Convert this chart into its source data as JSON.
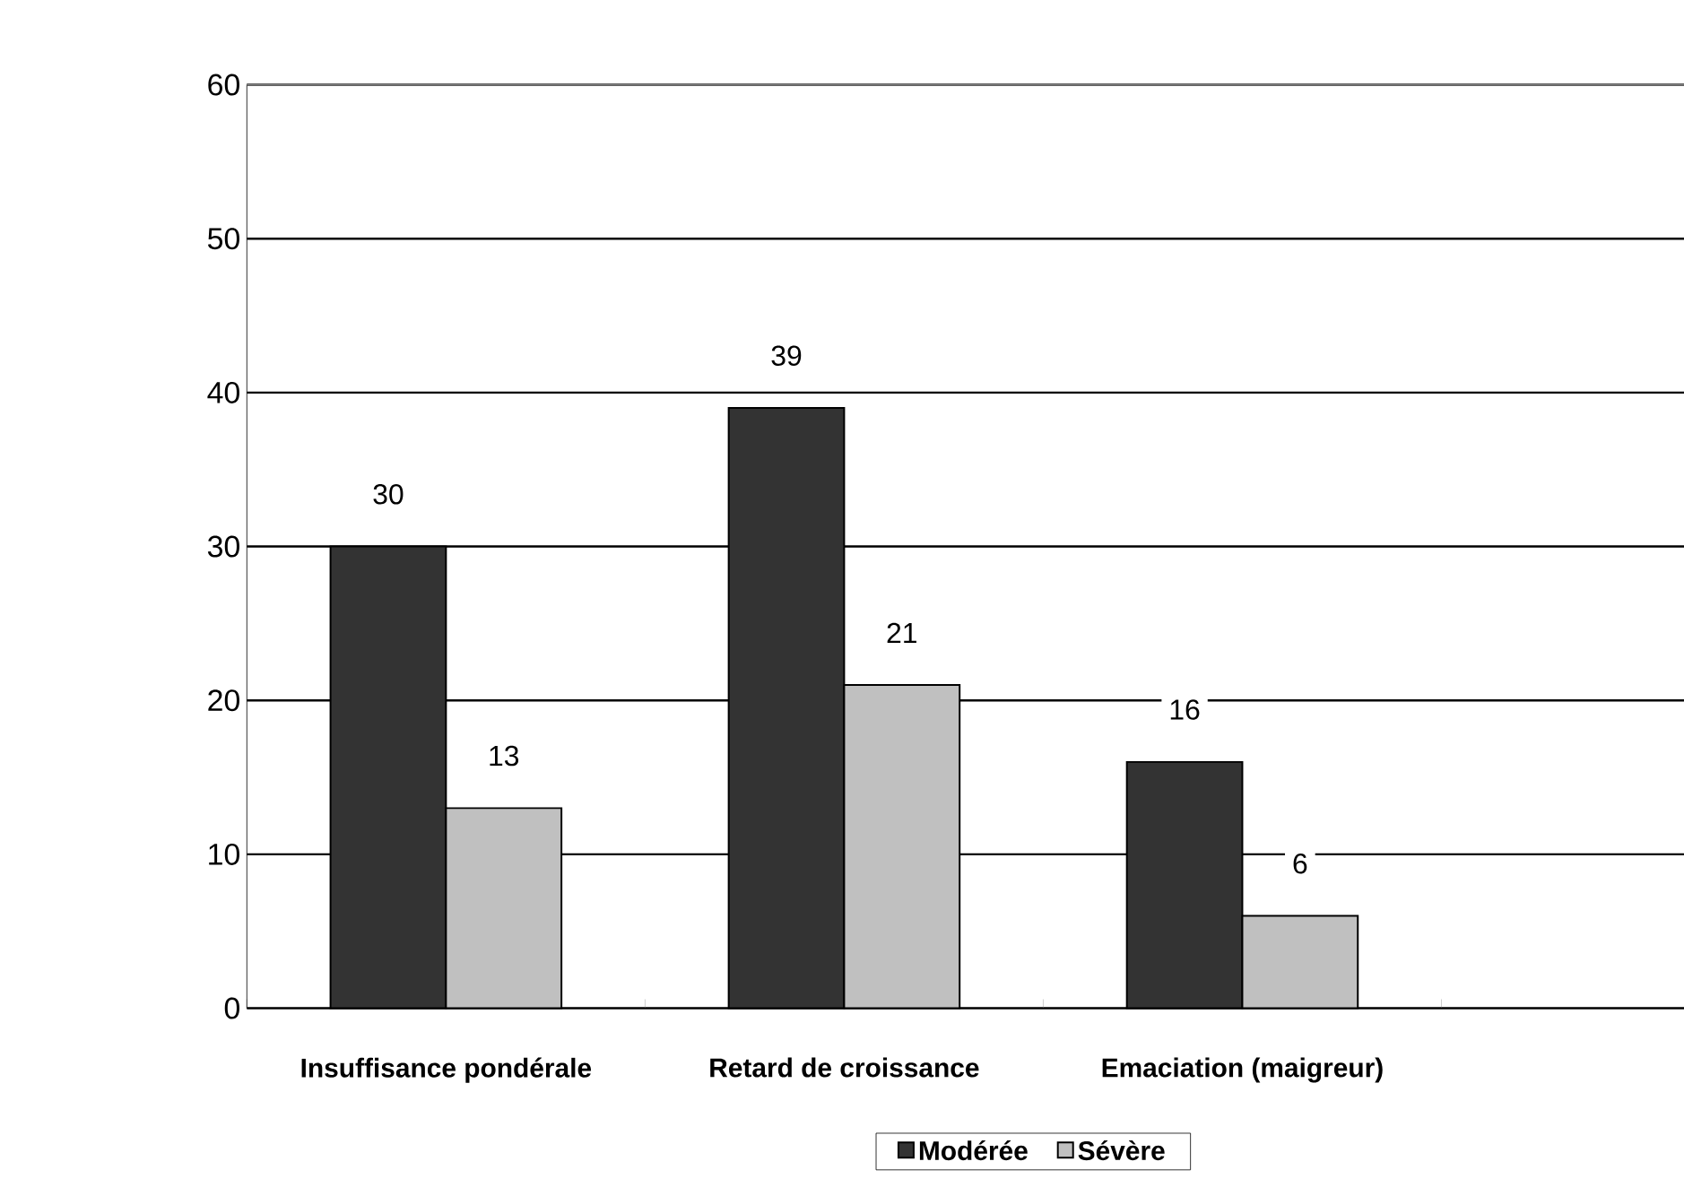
{
  "chart_data": {
    "type": "bar",
    "categories": [
      "Insuffisance pondérale",
      "Retard de croissance",
      "Emaciation (maigreur)",
      null
    ],
    "series": [
      {
        "name": "Modérée",
        "color": "#333333",
        "values": [
          30,
          39,
          16,
          null
        ]
      },
      {
        "name": "Sévère",
        "color": "#c0c0c0",
        "values": [
          13,
          21,
          6,
          null
        ]
      }
    ],
    "ylim": [
      0,
      60
    ],
    "yticks": [
      0,
      10,
      20,
      30,
      40,
      50,
      60
    ],
    "grid": "y",
    "legend": "bottom",
    "data_labels": true
  }
}
